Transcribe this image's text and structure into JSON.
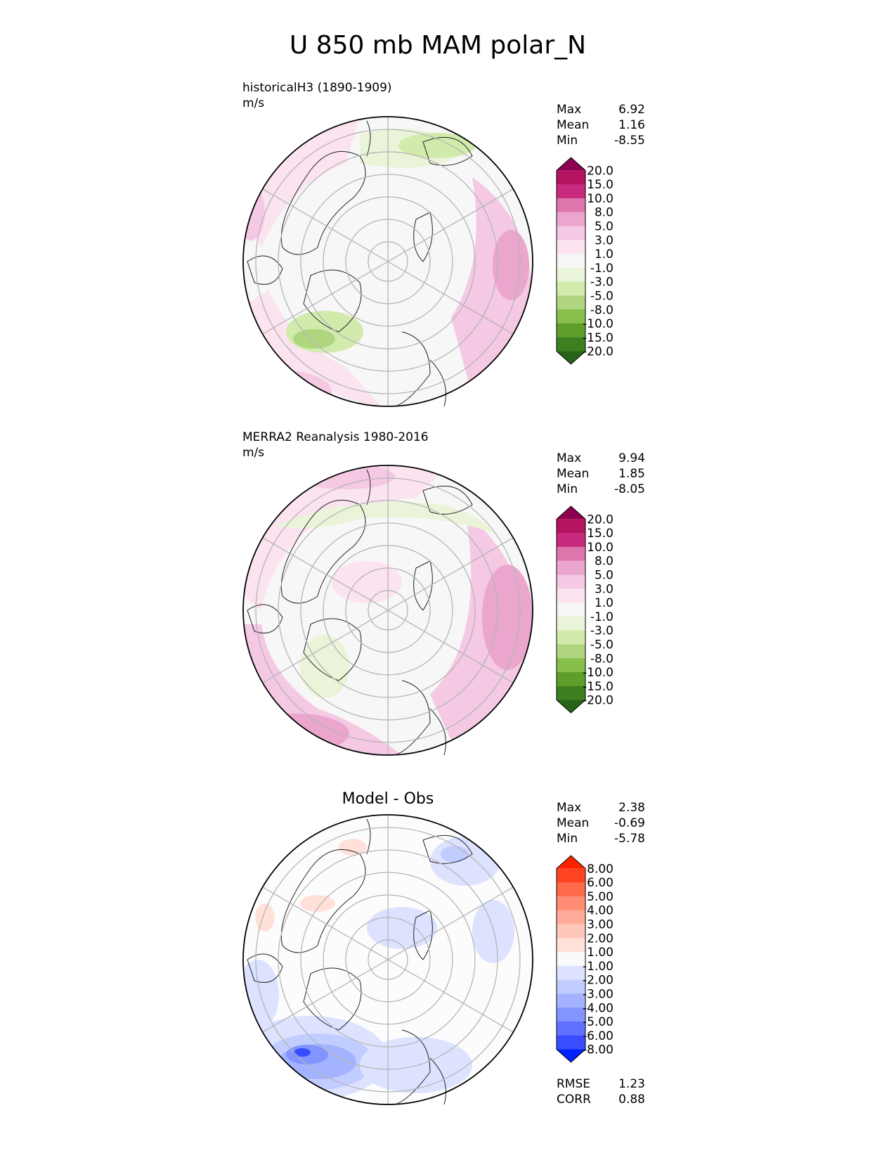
{
  "chart_data": {
    "type": "heatmap",
    "title": "U 850 mb MAM polar_N",
    "panels": [
      {
        "name": "test",
        "label_line1": "historicalH3 (1890-1909)",
        "label_line2": "m/s",
        "stats": [
          {
            "label": "Max",
            "value": "6.92"
          },
          {
            "label": "Mean",
            "value": "1.16"
          },
          {
            "label": "Min",
            "value": "-8.55"
          }
        ],
        "colorbar": {
          "ticks": [
            "20.0",
            "15.0",
            "10.0",
            "8.0",
            "5.0",
            "3.0",
            "1.0",
            "-1.0",
            "-3.0",
            "-5.0",
            "-8.0",
            "-10.0",
            "-15.0",
            "-20.0"
          ],
          "colors": [
            "#8e0152",
            "#b3135f",
            "#c82b7e",
            "#de77ae",
            "#eba6ce",
            "#f5c8e4",
            "#fbe3ef",
            "#f6f6f6",
            "#eaf4d9",
            "#d2ebad",
            "#afd67e",
            "#86bf4a",
            "#5e9f2c",
            "#3e7f1f",
            "#276419"
          ]
        }
      },
      {
        "name": "reference",
        "label_line1": "MERRA2 Reanalysis 1980-2016",
        "label_line2": "m/s",
        "stats": [
          {
            "label": "Max",
            "value": "9.94"
          },
          {
            "label": "Mean",
            "value": "1.85"
          },
          {
            "label": "Min",
            "value": "-8.05"
          }
        ],
        "colorbar": {
          "ticks": [
            "20.0",
            "15.0",
            "10.0",
            "8.0",
            "5.0",
            "3.0",
            "1.0",
            "-1.0",
            "-3.0",
            "-5.0",
            "-8.0",
            "-10.0",
            "-15.0",
            "-20.0"
          ],
          "colors": [
            "#8e0152",
            "#b3135f",
            "#c82b7e",
            "#de77ae",
            "#eba6ce",
            "#f5c8e4",
            "#fbe3ef",
            "#f6f6f6",
            "#eaf4d9",
            "#d2ebad",
            "#afd67e",
            "#86bf4a",
            "#5e9f2c",
            "#3e7f1f",
            "#276419"
          ]
        }
      },
      {
        "name": "difference",
        "center_title": "Model - Obs",
        "stats": [
          {
            "label": "Max",
            "value": "2.38"
          },
          {
            "label": "Mean",
            "value": "-0.69"
          },
          {
            "label": "Min",
            "value": "-5.78"
          }
        ],
        "colorbar": {
          "ticks": [
            "8.00",
            "6.00",
            "5.00",
            "4.00",
            "3.00",
            "2.00",
            "1.00",
            "-1.00",
            "-2.00",
            "-3.00",
            "-4.00",
            "-5.00",
            "-6.00",
            "-8.00"
          ],
          "colors": [
            "#ff2200",
            "#ff4422",
            "#ff6a4a",
            "#ff8c73",
            "#ffab99",
            "#ffc7bb",
            "#ffe1da",
            "#fafafa",
            "#dde3ff",
            "#c2cdff",
            "#a3b3ff",
            "#8294ff",
            "#6071ff",
            "#3a4cff",
            "#0022ff"
          ]
        },
        "metrics": [
          {
            "label": "RMSE",
            "value": "1.23"
          },
          {
            "label": "CORR",
            "value": "0.88"
          }
        ]
      }
    ]
  }
}
